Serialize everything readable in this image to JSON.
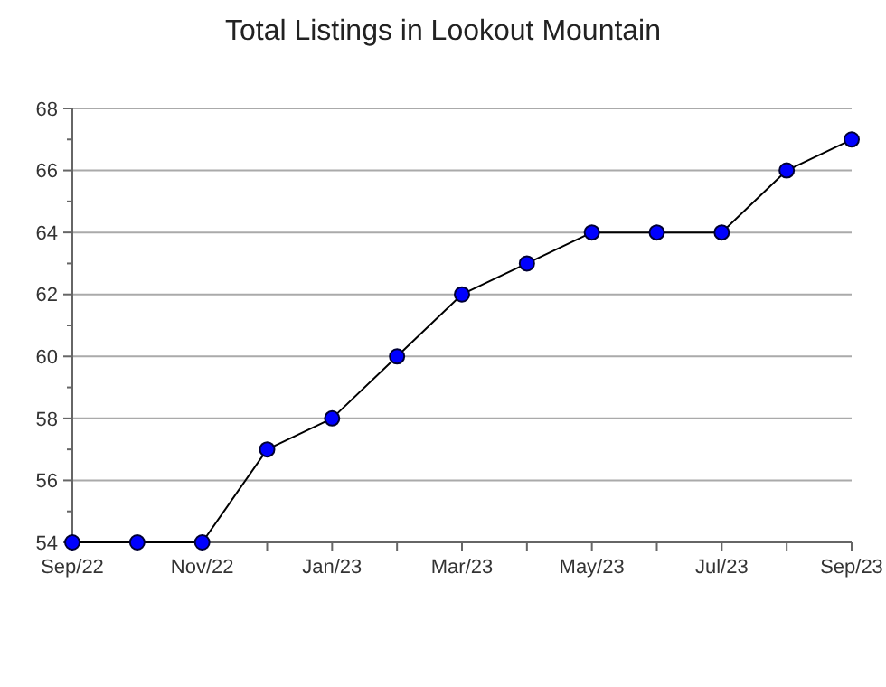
{
  "chart_data": {
    "type": "line",
    "title": "Total Listings in Lookout Mountain",
    "categories": [
      "Sep/22",
      null,
      "Nov/22",
      null,
      "Jan/23",
      null,
      "Mar/23",
      null,
      "May/23",
      null,
      "Jul/23",
      null,
      "Sep/23"
    ],
    "series": [
      {
        "color": "#0000ff",
        "values": [
          54,
          54,
          54,
          57,
          58,
          60,
          62,
          63,
          64,
          64,
          64,
          66,
          67
        ]
      }
    ],
    "ylim": [
      54,
      68
    ],
    "yticks": [
      54,
      {
        "value": 55,
        "label": null
      },
      56,
      {
        "value": 57,
        "label": null
      },
      58,
      {
        "value": 59,
        "label": null
      },
      60,
      {
        "value": 61,
        "label": null
      },
      62,
      {
        "value": 63,
        "label": null
      },
      64,
      {
        "value": 65,
        "label": null
      },
      66,
      {
        "value": 67,
        "label": null
      },
      68
    ],
    "grid": "y",
    "marker": "circle",
    "line_style": "solid"
  }
}
